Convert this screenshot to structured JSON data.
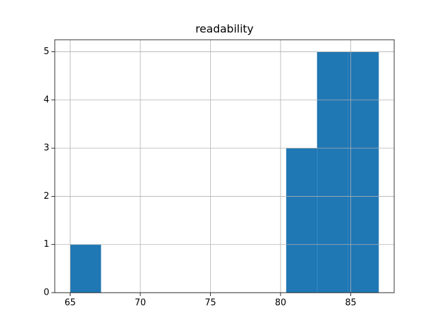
{
  "chart_data": {
    "type": "histogram",
    "title": "readability",
    "bins": [
      65,
      67.2,
      69.4,
      71.6,
      73.8,
      76,
      78.2,
      80.4,
      82.6,
      84.8,
      87
    ],
    "counts": [
      1,
      0,
      0,
      0,
      0,
      0,
      0,
      3,
      5,
      5
    ],
    "color": "#1f77b4",
    "xlim": [
      63.9,
      88.1
    ],
    "xticks": [
      65,
      70,
      75,
      80,
      85
    ],
    "ylim": [
      0,
      5.25
    ],
    "yticks": [
      0,
      1,
      2,
      3,
      4,
      5
    ],
    "grid": true
  }
}
